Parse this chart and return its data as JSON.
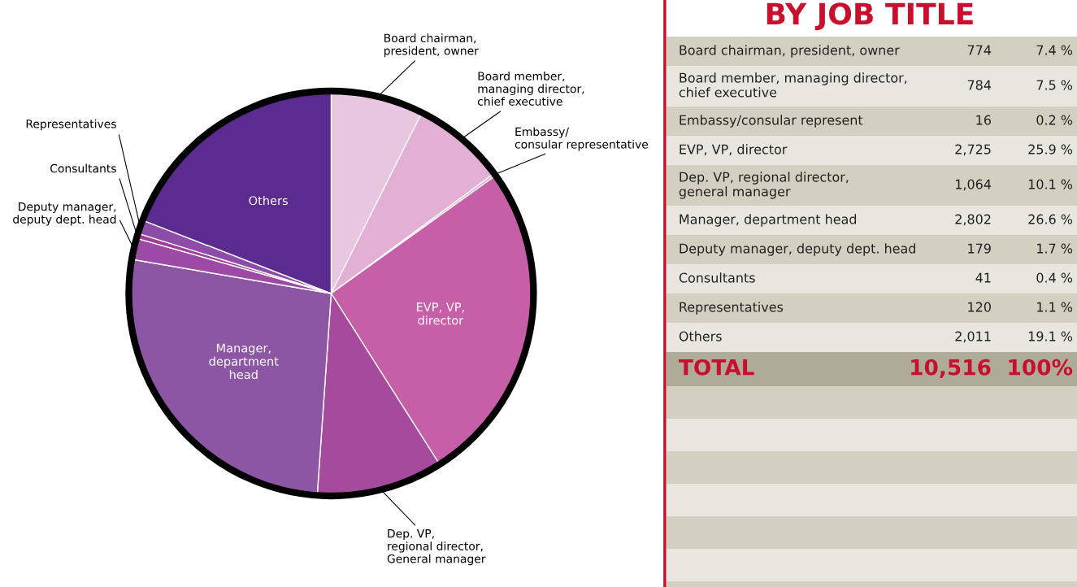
{
  "chart_data": [
    {
      "type": "pie",
      "categories": [
        "Board chairman,\npresident, owner",
        "Board member,\nmanaging director,\nchief executive",
        "Embassy/\nconsular representative",
        "EVP, VP,\ndirector",
        "Dep. VP,\nregional director,\nGeneral manager",
        "Manager,\ndepartment\nhead",
        "Deputy manager,\ndeputy dept. head",
        "Consultants",
        "Representatives",
        "Others"
      ],
      "values": [
        7.4,
        7.5,
        0.2,
        25.9,
        10.1,
        26.6,
        1.7,
        0.4,
        1.1,
        19.1
      ],
      "colors": [
        "#e8c6e0",
        "#e2afd5",
        "#d99fcd",
        "#c75fa8",
        "#a64a9e",
        "#8c56a4",
        "#9c4aa6",
        "#a33c9c",
        "#8c4ca8",
        "#5b2b8f"
      ]
    },
    {
      "type": "other",
      "title": "BY JOB TITLE",
      "categories": [
        "Board chairman, president, owner",
        "Board member, managing director,\nchief executive",
        "Embassy/consular represent",
        "EVP, VP, director",
        "Dep. VP, regional director,\ngeneral manager",
        "Manager, department head",
        "Deputy manager, deputy dept. head",
        "Consultants",
        "Representatives",
        "Others"
      ],
      "series": [
        {
          "colors": [
            "#d3d0c1",
            "#e8e6df",
            "#d3d0c1",
            "#e8e6df",
            "#d3d0c1",
            "#e8e6df",
            "#d3d0c1",
            "#e8e6df",
            "#d3d0c1",
            "#e8e6df"
          ],
          "values": [
            774,
            784,
            16,
            2725,
            1064,
            2802,
            179,
            41,
            120,
            2011
          ],
          "value_labels": [
            "774",
            "784",
            "16",
            "2,725",
            "1,064",
            "2,802",
            "179",
            "41",
            "120",
            "2,011"
          ]
        },
        {
          "values": [
            7.4,
            7.5,
            0.2,
            25.9,
            10.1,
            26.6,
            1.7,
            0.4,
            1.1,
            19.1
          ],
          "value_labels": [
            "7.4 %",
            "7.5 %",
            "0.2 %",
            "25.9 %",
            "10.1 %",
            "26.6 %",
            "1.7 %",
            "0.4 %",
            "1.1 %",
            "19.1 %"
          ]
        }
      ],
      "annotations": [
        "TOTAL",
        "10,516",
        "100%"
      ]
    }
  ]
}
